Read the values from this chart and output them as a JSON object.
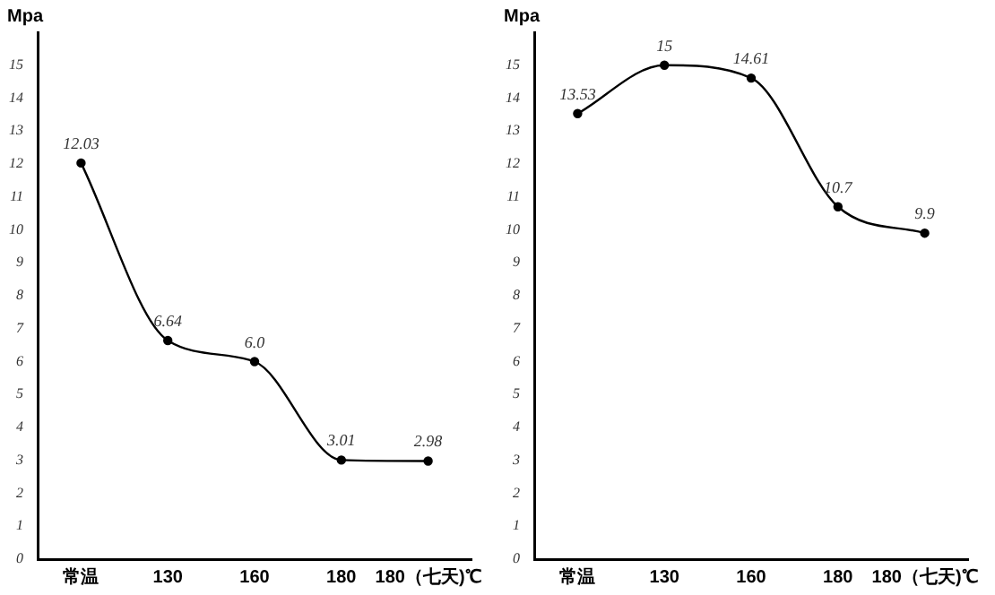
{
  "chart_data": [
    {
      "type": "line",
      "ylabel": "Mpa",
      "categories": [
        "常温",
        "130",
        "160",
        "180",
        "180（七天)℃"
      ],
      "series": [
        {
          "color": "#000000",
          "values": [
            12.03,
            6.64,
            6.0,
            3.01,
            2.98
          ],
          "value_labels": [
            "12.03",
            "6.64",
            "6.0",
            "3.01",
            "2.98"
          ]
        }
      ],
      "ylim": [
        0,
        16
      ],
      "yticks": [
        0,
        1,
        2,
        3,
        4,
        5,
        6,
        7,
        8,
        9,
        10,
        11,
        12,
        13,
        14,
        15
      ],
      "grid": false,
      "legend": false,
      "marker": "circle"
    },
    {
      "type": "line",
      "ylabel": "Mpa",
      "categories": [
        "常温",
        "130",
        "160",
        "180",
        "180（七天)℃"
      ],
      "series": [
        {
          "color": "#000000",
          "values": [
            13.53,
            15,
            14.61,
            10.7,
            9.9
          ],
          "value_labels": [
            "13.53",
            "15",
            "14.61",
            "10.7",
            "9.9"
          ]
        }
      ],
      "ylim": [
        0,
        16
      ],
      "yticks": [
        0,
        1,
        2,
        3,
        4,
        5,
        6,
        7,
        8,
        9,
        10,
        11,
        12,
        13,
        14,
        15
      ],
      "grid": false,
      "legend": false,
      "marker": "circle"
    }
  ]
}
